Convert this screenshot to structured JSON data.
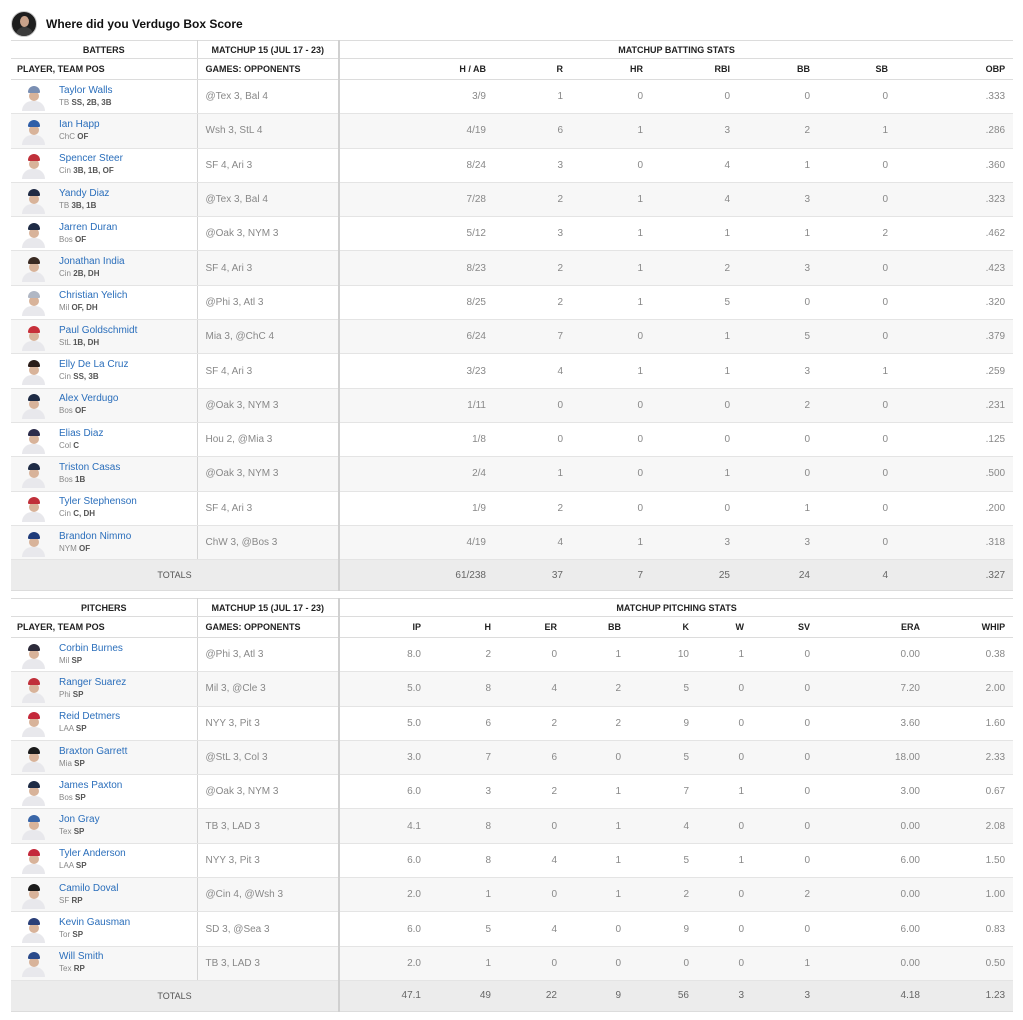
{
  "header": {
    "title": "Where did you Verdugo Box Score"
  },
  "batting": {
    "group_headers": {
      "players": "BATTERS",
      "matchup": "MATCHUP 15 (JUL 17 - 23)",
      "stats": "MATCHUP BATTING STATS"
    },
    "columns": {
      "player": "PLAYER, TEAM POS",
      "games": "GAMES: OPPONENTS",
      "stats": [
        "H / AB",
        "R",
        "HR",
        "RBI",
        "BB",
        "SB",
        "OBP"
      ]
    },
    "rows": [
      {
        "name": "Taylor Walls",
        "team": "TB",
        "pos": "SS, 2B, 3B",
        "games": "@Tex 3, Bal 4",
        "stats": [
          "3/9",
          "1",
          "0",
          "0",
          "0",
          "0",
          ".333"
        ],
        "cap_color": "#7a8fb3"
      },
      {
        "name": "Ian Happ",
        "team": "ChC",
        "pos": "OF",
        "games": "Wsh 3, StL 4",
        "stats": [
          "4/19",
          "6",
          "1",
          "3",
          "2",
          "1",
          ".286"
        ],
        "cap_color": "#2f5ea8"
      },
      {
        "name": "Spencer Steer",
        "team": "Cin",
        "pos": "3B, 1B, OF",
        "games": "SF 4, Ari 3",
        "stats": [
          "8/24",
          "3",
          "0",
          "4",
          "1",
          "0",
          ".360"
        ],
        "cap_color": "#c0303a"
      },
      {
        "name": "Yandy Diaz",
        "team": "TB",
        "pos": "3B, 1B",
        "games": "@Tex 3, Bal 4",
        "stats": [
          "7/28",
          "2",
          "1",
          "4",
          "3",
          "0",
          ".323"
        ],
        "cap_color": "#1f2a44"
      },
      {
        "name": "Jarren Duran",
        "team": "Bos",
        "pos": "OF",
        "games": "@Oak 3, NYM 3",
        "stats": [
          "5/12",
          "3",
          "1",
          "1",
          "1",
          "2",
          ".462"
        ],
        "cap_color": "#1e2b45"
      },
      {
        "name": "Jonathan India",
        "team": "Cin",
        "pos": "2B, DH",
        "games": "SF 4, Ari 3",
        "stats": [
          "8/23",
          "2",
          "1",
          "2",
          "3",
          "0",
          ".423"
        ],
        "cap_color": "#3a2a22"
      },
      {
        "name": "Christian Yelich",
        "team": "Mil",
        "pos": "OF, DH",
        "games": "@Phi 3, Atl 3",
        "stats": [
          "8/25",
          "2",
          "1",
          "5",
          "0",
          "0",
          ".320"
        ],
        "cap_color": "#b0b7c4"
      },
      {
        "name": "Paul Goldschmidt",
        "team": "StL",
        "pos": "1B, DH",
        "games": "Mia 3, @ChC 4",
        "stats": [
          "6/24",
          "7",
          "0",
          "1",
          "5",
          "0",
          ".379"
        ],
        "cap_color": "#c7303a"
      },
      {
        "name": "Elly De La Cruz",
        "team": "Cin",
        "pos": "SS, 3B",
        "games": "SF 4, Ari 3",
        "stats": [
          "3/23",
          "4",
          "1",
          "1",
          "3",
          "1",
          ".259"
        ],
        "cap_color": "#2a1c18"
      },
      {
        "name": "Alex Verdugo",
        "team": "Bos",
        "pos": "OF",
        "games": "@Oak 3, NYM 3",
        "stats": [
          "1/11",
          "0",
          "0",
          "0",
          "2",
          "0",
          ".231"
        ],
        "cap_color": "#1e2b45"
      },
      {
        "name": "Elias Diaz",
        "team": "Col",
        "pos": "C",
        "games": "Hou 2, @Mia 3",
        "stats": [
          "1/8",
          "0",
          "0",
          "0",
          "0",
          "0",
          ".125"
        ],
        "cap_color": "#2b2b4a"
      },
      {
        "name": "Triston Casas",
        "team": "Bos",
        "pos": "1B",
        "games": "@Oak 3, NYM 3",
        "stats": [
          "2/4",
          "1",
          "0",
          "1",
          "0",
          "0",
          ".500"
        ],
        "cap_color": "#1e2b45"
      },
      {
        "name": "Tyler Stephenson",
        "team": "Cin",
        "pos": "C, DH",
        "games": "SF 4, Ari 3",
        "stats": [
          "1/9",
          "2",
          "0",
          "0",
          "1",
          "0",
          ".200"
        ],
        "cap_color": "#c0303a"
      },
      {
        "name": "Brandon Nimmo",
        "team": "NYM",
        "pos": "OF",
        "games": "ChW 3, @Bos 3",
        "stats": [
          "4/19",
          "4",
          "1",
          "3",
          "3",
          "0",
          ".318"
        ],
        "cap_color": "#1f3b7a"
      }
    ],
    "totals": {
      "label": "TOTALS",
      "stats": [
        "61/238",
        "37",
        "7",
        "25",
        "24",
        "4",
        ".327"
      ]
    }
  },
  "pitching": {
    "group_headers": {
      "players": "PITCHERS",
      "matchup": "MATCHUP 15 (JUL 17 - 23)",
      "stats": "MATCHUP PITCHING STATS"
    },
    "columns": {
      "player": "PLAYER, TEAM POS",
      "games": "GAMES: OPPONENTS",
      "stats": [
        "IP",
        "H",
        "ER",
        "BB",
        "K",
        "W",
        "SV",
        "ERA",
        "WHIP"
      ]
    },
    "rows": [
      {
        "name": "Corbin Burnes",
        "team": "Mil",
        "pos": "SP",
        "games": "@Phi 3, Atl 3",
        "stats": [
          "8.0",
          "2",
          "0",
          "1",
          "10",
          "1",
          "0",
          "0.00",
          "0.38"
        ],
        "cap_color": "#2c2a3a"
      },
      {
        "name": "Ranger Suarez",
        "team": "Phi",
        "pos": "SP",
        "games": "Mil 3, @Cle 3",
        "stats": [
          "5.0",
          "8",
          "4",
          "2",
          "5",
          "0",
          "0",
          "7.20",
          "2.00"
        ],
        "cap_color": "#c0303a"
      },
      {
        "name": "Reid Detmers",
        "team": "LAA",
        "pos": "SP",
        "games": "NYY 3, Pit 3",
        "stats": [
          "5.0",
          "6",
          "2",
          "2",
          "9",
          "0",
          "0",
          "3.60",
          "1.60"
        ],
        "cap_color": "#c4283a"
      },
      {
        "name": "Braxton Garrett",
        "team": "Mia",
        "pos": "SP",
        "games": "@StL 3, Col 3",
        "stats": [
          "3.0",
          "7",
          "6",
          "0",
          "5",
          "0",
          "0",
          "18.00",
          "2.33"
        ],
        "cap_color": "#1b1b1b"
      },
      {
        "name": "James Paxton",
        "team": "Bos",
        "pos": "SP",
        "games": "@Oak 3, NYM 3",
        "stats": [
          "6.0",
          "3",
          "2",
          "1",
          "7",
          "1",
          "0",
          "3.00",
          "0.67"
        ],
        "cap_color": "#1e2b45"
      },
      {
        "name": "Jon Gray",
        "team": "Tex",
        "pos": "SP",
        "games": "TB 3, LAD 3",
        "stats": [
          "4.1",
          "8",
          "0",
          "1",
          "4",
          "0",
          "0",
          "0.00",
          "2.08"
        ],
        "cap_color": "#3a66a8"
      },
      {
        "name": "Tyler Anderson",
        "team": "LAA",
        "pos": "SP",
        "games": "NYY 3, Pit 3",
        "stats": [
          "6.0",
          "8",
          "4",
          "1",
          "5",
          "1",
          "0",
          "6.00",
          "1.50"
        ],
        "cap_color": "#c4283a"
      },
      {
        "name": "Camilo Doval",
        "team": "SF",
        "pos": "RP",
        "games": "@Cin 4, @Wsh 3",
        "stats": [
          "2.0",
          "1",
          "0",
          "1",
          "2",
          "0",
          "2",
          "0.00",
          "1.00"
        ],
        "cap_color": "#1b1b1b"
      },
      {
        "name": "Kevin Gausman",
        "team": "Tor",
        "pos": "SP",
        "games": "SD 3, @Sea 3",
        "stats": [
          "6.0",
          "5",
          "4",
          "0",
          "9",
          "0",
          "0",
          "6.00",
          "0.83"
        ],
        "cap_color": "#2a3f78"
      },
      {
        "name": "Will Smith",
        "team": "Tex",
        "pos": "RP",
        "games": "TB 3, LAD 3",
        "stats": [
          "2.0",
          "1",
          "0",
          "0",
          "0",
          "0",
          "1",
          "0.00",
          "0.50"
        ],
        "cap_color": "#2a4a8a"
      }
    ],
    "totals": {
      "label": "TOTALS",
      "stats": [
        "47.1",
        "49",
        "22",
        "9",
        "56",
        "3",
        "3",
        "4.18",
        "1.23"
      ]
    }
  },
  "icons": {
    "owner_avatar": "user-avatar-icon",
    "player_headshot": "player-headshot-icon"
  }
}
